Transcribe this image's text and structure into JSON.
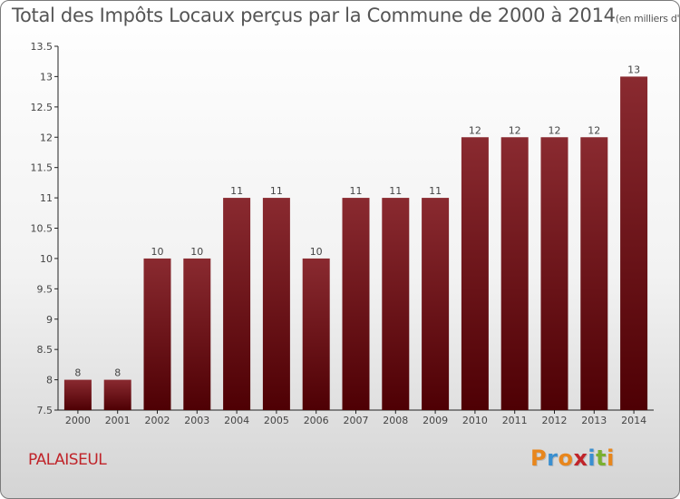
{
  "title": "Total des Impôts Locaux perçus par la Commune de 2000 à 2014",
  "unit": "(en milliers d'€)",
  "commune": "PALAISEUL",
  "logo": {
    "letters": [
      "P",
      "r",
      "o",
      "x",
      "i",
      "t",
      "i"
    ],
    "colors": [
      "#e8861c",
      "#3a8fd0",
      "#e8861c",
      "#c0242a",
      "#3a8fd0",
      "#7ab030",
      "#e8861c"
    ]
  },
  "chart_data": {
    "type": "bar",
    "categories": [
      "2000",
      "2001",
      "2002",
      "2003",
      "2004",
      "2005",
      "2006",
      "2007",
      "2008",
      "2009",
      "2010",
      "2011",
      "2012",
      "2013",
      "2014"
    ],
    "values": [
      8,
      8,
      10,
      10,
      11,
      11,
      10,
      11,
      11,
      11,
      12,
      12,
      12,
      12,
      13
    ],
    "ylim": [
      7.5,
      13.5
    ],
    "yticks": [
      7.5,
      8,
      8.5,
      9,
      9.5,
      10,
      10.5,
      11,
      11.5,
      12,
      12.5,
      13,
      13.5
    ],
    "ytick_labels": [
      "7.5",
      "8",
      "8.5",
      "9",
      "9.5",
      "10",
      "10.5",
      "11",
      "11.5",
      "12",
      "12.5",
      "13",
      "13.5"
    ],
    "bar_color": "#6e0f14",
    "grid": false
  }
}
